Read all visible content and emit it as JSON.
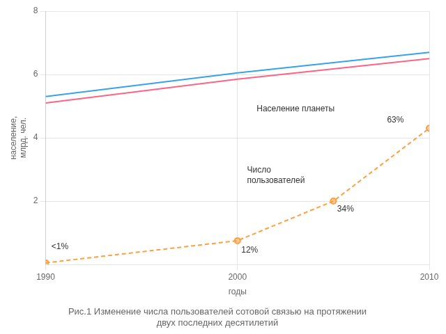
{
  "chart_data": {
    "type": "line",
    "title": "Рис.1 Изменение числа пользователей сотовой связью на протяжении\nдвух последних десятилетий",
    "x_label": "годы",
    "y_label": "население,\nмлрд. чел.",
    "series": [
      {
        "x": [
          1990,
          2000,
          2010
        ],
        "values": [
          5.3,
          6.05,
          6.7
        ],
        "line_style": "solid"
      },
      {
        "x": [
          1990,
          2000,
          2010
        ],
        "values": [
          5.1,
          5.85,
          6.5
        ],
        "line_style": "solid"
      },
      {
        "x": [
          1990,
          2000,
          2005,
          2010
        ],
        "values": [
          0.05,
          0.75,
          2.0,
          4.3
        ],
        "line_style": "dashed",
        "marker": "circle"
      }
    ],
    "xlim": [
      1990,
      2010
    ],
    "xticks": [
      1990,
      2000,
      2010
    ],
    "ylim": [
      0,
      8
    ],
    "yticks": [
      2,
      4,
      6,
      8
    ],
    "grid": true,
    "annotations": [
      {
        "text": "Население планеты",
        "x": 2001,
        "y": 4.9
      },
      {
        "text": "Число\nпользователей",
        "x": 2000.5,
        "y": 2.8
      },
      {
        "text": "<1%",
        "x": 1990.3,
        "y": 0.55
      },
      {
        "text": "12%",
        "x": 2000.2,
        "y": 0.45
      },
      {
        "text": "34%",
        "x": 2005.2,
        "y": 1.75
      },
      {
        "text": "63%",
        "x": 2007.8,
        "y": 4.55
      }
    ]
  }
}
